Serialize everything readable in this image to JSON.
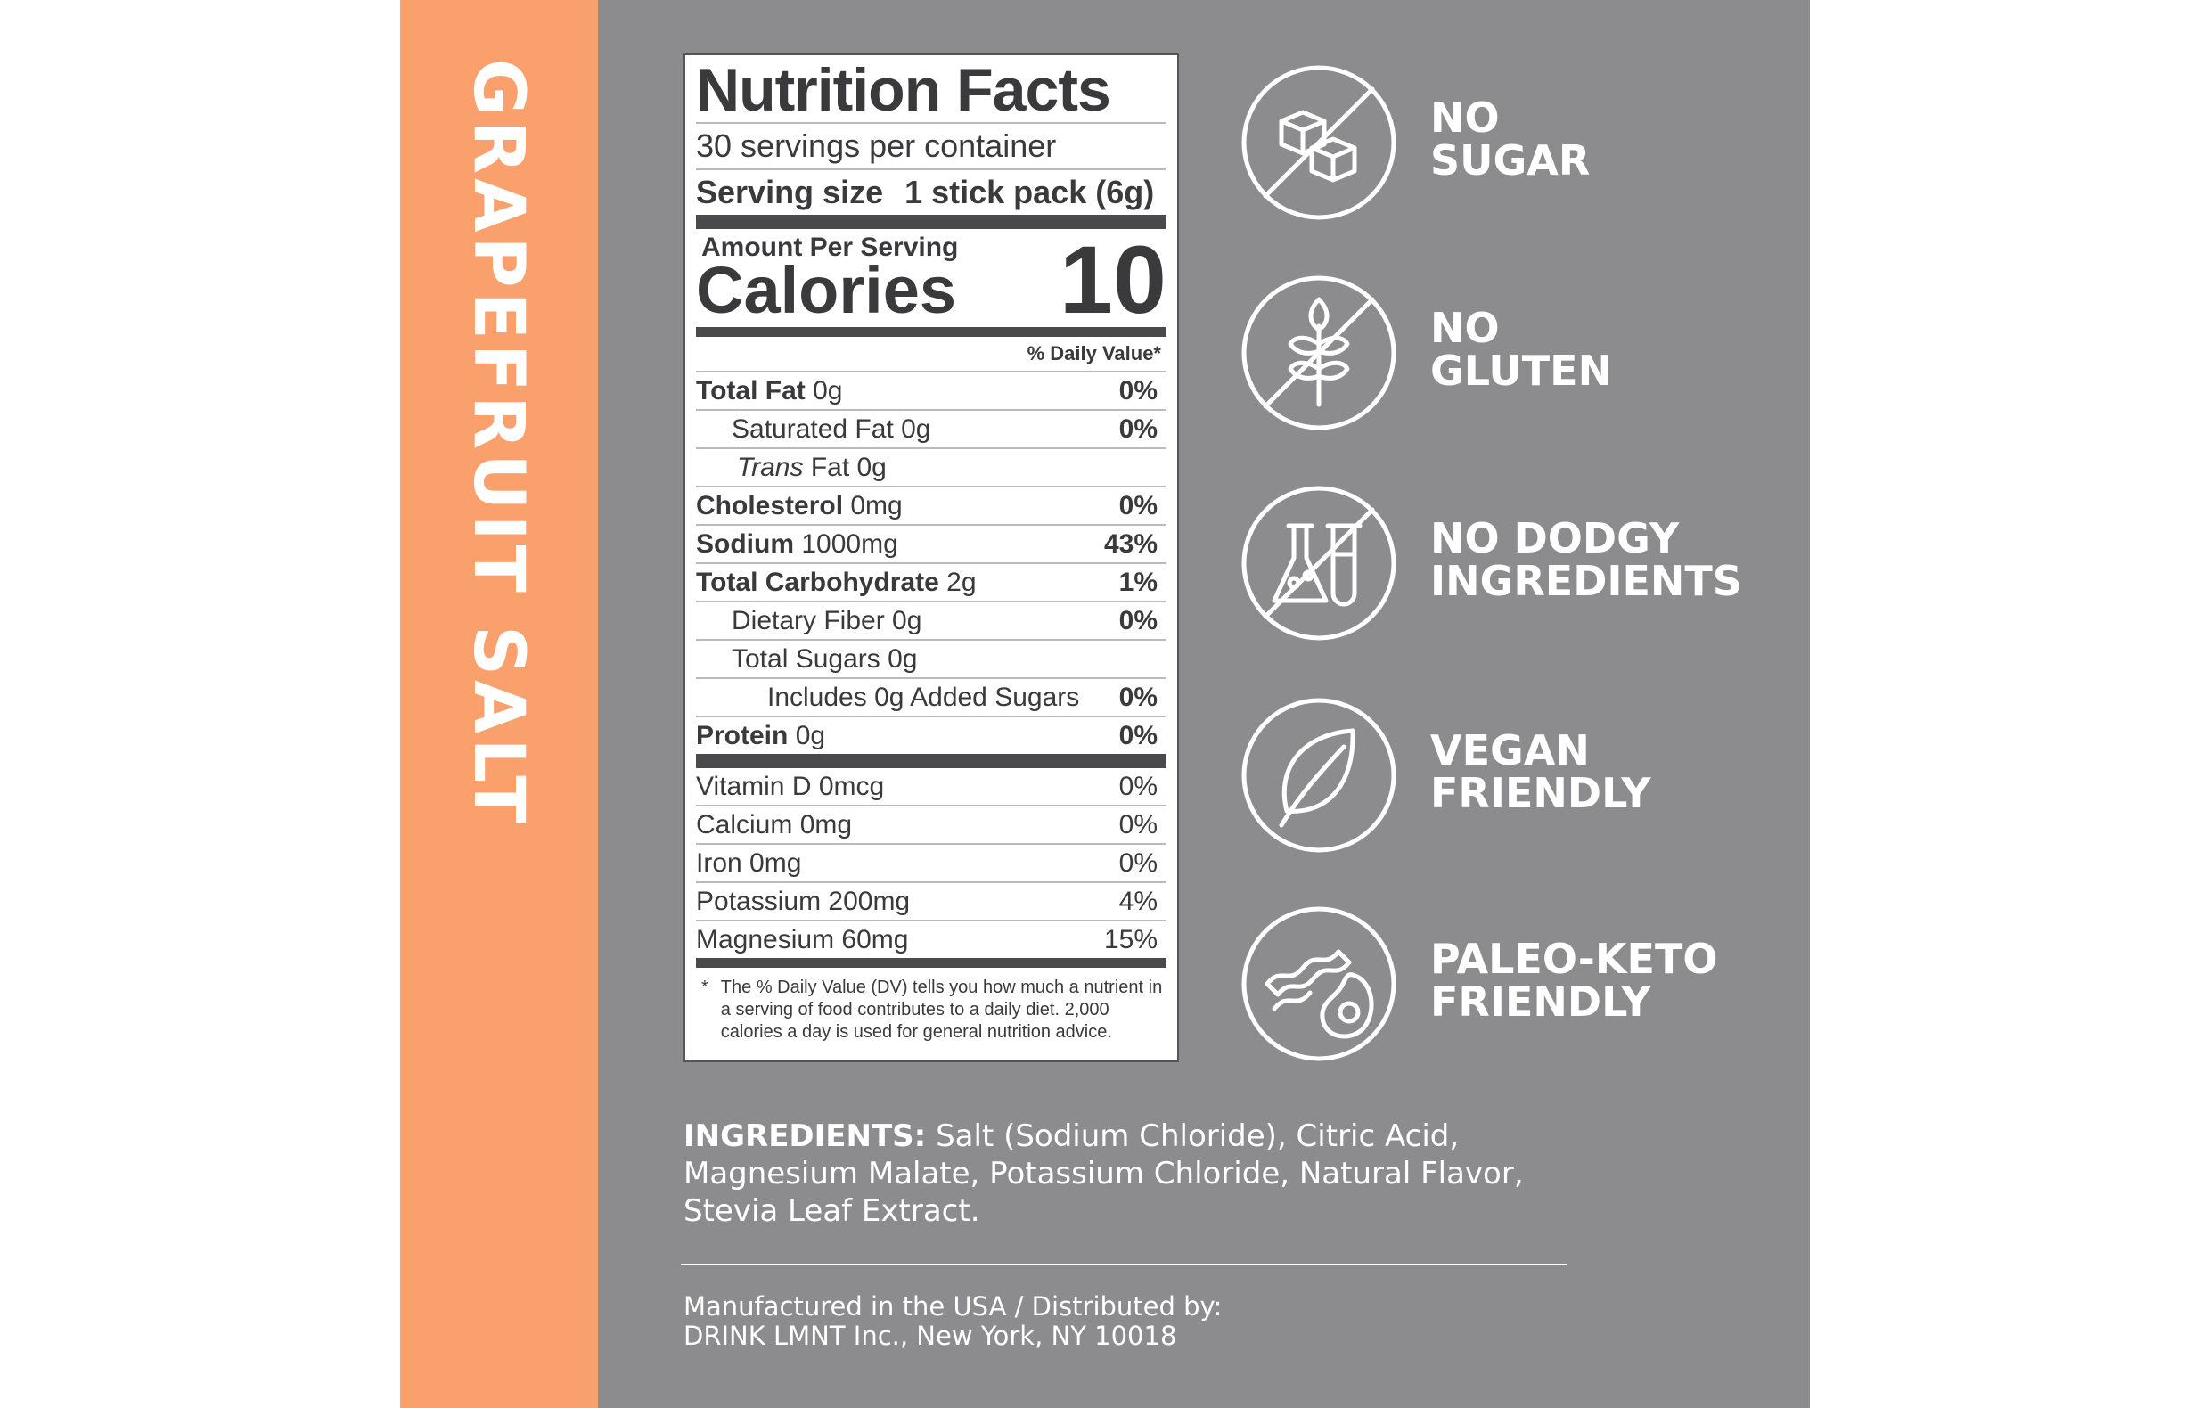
{
  "side_label": "GRAPEFRUIT SALT",
  "nutrition_facts": {
    "title": "Nutrition Facts",
    "servings": "30 servings per container",
    "serving_size_label": "Serving size",
    "serving_size_value": "1 stick pack (6g)",
    "amount_per_serving": "Amount Per Serving",
    "calories_label": "Calories",
    "calories_value": "10",
    "daily_value_header": "% Daily Value*",
    "nutrients": [
      {
        "name": "Total Fat",
        "amount": "0g",
        "dv": "0%"
      },
      {
        "name": "Saturated Fat 0g",
        "dv": "0%"
      },
      {
        "name": "Trans",
        "amount": "Fat 0g"
      },
      {
        "name": "Cholesterol",
        "amount": "0mg",
        "dv": "0%"
      },
      {
        "name": "Sodium",
        "amount": "1000mg",
        "dv": "43%"
      },
      {
        "name": "Total Carbohydrate",
        "amount": "2g",
        "dv": "1%"
      },
      {
        "name": "Dietary Fiber 0g",
        "dv": "0%"
      },
      {
        "name": "Total Sugars 0g"
      },
      {
        "name": "Includes 0g Added Sugars",
        "dv": "0%"
      },
      {
        "name": "Protein",
        "amount": "0g",
        "dv": "0%"
      }
    ],
    "vitamins_minerals": [
      {
        "name": "Vitamin D 0mcg",
        "dv": "0%"
      },
      {
        "name": "Calcium 0mg",
        "dv": "0%"
      },
      {
        "name": "Iron 0mg",
        "dv": "0%"
      },
      {
        "name": "Potassium 200mg",
        "dv": "4%"
      },
      {
        "name": "Magnesium 60mg",
        "dv": "15%"
      }
    ],
    "footnote_mark": "*",
    "footnote": "The % Daily Value (DV) tells you how much a nutrient in a serving of food contributes to a daily diet. 2,000 calories a day is used for general nutrition advice."
  },
  "claims": [
    {
      "lines": [
        "NO",
        "SUGAR"
      ]
    },
    {
      "lines": [
        "NO",
        "GLUTEN"
      ]
    },
    {
      "lines": [
        "NO DODGY",
        "INGREDIENTS"
      ]
    },
    {
      "lines": [
        "VEGAN",
        "FRIENDLY"
      ]
    },
    {
      "lines": [
        "PALEO-KETO",
        "FRIENDLY"
      ]
    }
  ],
  "ingredients": {
    "label": "INGREDIENTS:",
    "text": "Salt (Sodium Chloride), Citric Acid, Magnesium Malate, Potassium Chloride, Natural Flavor, Stevia Leaf Extract."
  },
  "manufacturer": [
    "Manufactured in the USA / Distributed by:",
    "DRINK LMNT Inc., New York, NY 10018"
  ]
}
